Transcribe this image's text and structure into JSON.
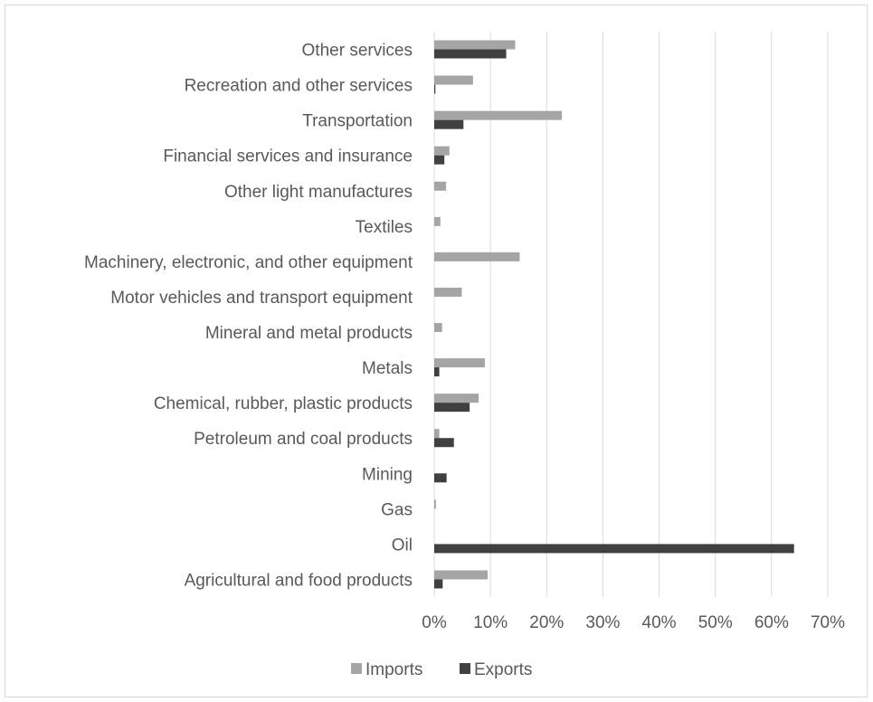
{
  "chart_data": {
    "type": "bar",
    "orientation": "horizontal",
    "categories": [
      "Agricultural and food products",
      "Oil",
      "Gas",
      "Mining",
      "Petroleum and coal products",
      "Chemical, rubber, plastic products",
      "Metals",
      "Mineral and metal products",
      "Motor vehicles and transport equipment",
      "Machinery, electronic, and other equipment",
      "Textiles",
      "Other light manufactures",
      "Financial services and insurance",
      "Transportation",
      "Recreation and other services",
      "Other services"
    ],
    "series": [
      {
        "name": "Imports",
        "color": "#a5a5a5",
        "values": [
          9.5,
          0,
          0.3,
          0,
          0.9,
          7.9,
          9.0,
          1.4,
          4.9,
          15.2,
          1.1,
          2.1,
          2.7,
          22.7,
          6.9,
          14.4
        ]
      },
      {
        "name": "Exports",
        "color": "#404040",
        "values": [
          1.5,
          64.0,
          0,
          2.2,
          3.5,
          6.3,
          0.9,
          0,
          0,
          0,
          0,
          0,
          1.8,
          5.2,
          0.2,
          12.8
        ]
      }
    ],
    "xlim": [
      0,
      70
    ],
    "xticks": [
      "0%",
      "10%",
      "20%",
      "30%",
      "40%",
      "50%",
      "60%",
      "70%"
    ],
    "grid": true,
    "legend_position": "bottom",
    "title": "",
    "xlabel": "",
    "ylabel": ""
  }
}
